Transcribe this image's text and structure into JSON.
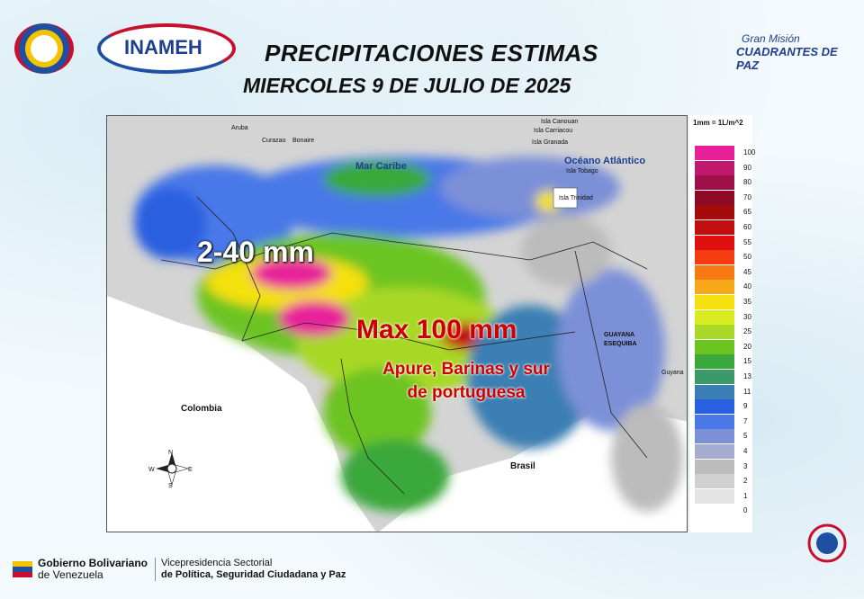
{
  "header": {
    "title": "PRECIPITACIONES  ESTIMAS",
    "subtitle": "MIERCOLES 9  DE JULIO DE 2025"
  },
  "logos": {
    "inameh": "INAMEH",
    "gran_mision_1": "Gran Misión",
    "gran_mision_2": "CUADRANTES DE PAZ"
  },
  "map": {
    "labels": {
      "aruba": "Aruba",
      "curazao": "Curazao",
      "bonaire": "Bonaire",
      "mar_caribe": "Mar Caribe",
      "oceano": "Océano Atlántico",
      "canouan": "Isla Canouan",
      "carriacou": "Isla Carriacou",
      "granada": "Isla Granada",
      "tobago": "Isla Tobago",
      "trinidad": "Isla Trinidad",
      "colombia": "Colombia",
      "brasil": "Brasil",
      "guyana": "Guyana",
      "guayana_esequiba_1": "GUAYANA",
      "guayana_esequiba_2": "ESEQUIBA"
    },
    "compass": {
      "n": "N",
      "s": "S",
      "e": "E",
      "w": "W"
    },
    "annotations": {
      "range": "2-40 mm",
      "max": "Max 100 mm",
      "states_1": "Apure, Barinas y sur",
      "states_2": "de portuguesa"
    }
  },
  "legend": {
    "unit": "1mm = 1L/m^2",
    "levels": [
      {
        "value": "100",
        "color": "#e8209a"
      },
      {
        "value": "90",
        "color": "#c2186e"
      },
      {
        "value": "80",
        "color": "#a01048"
      },
      {
        "value": "70",
        "color": "#8c0a26"
      },
      {
        "value": "65",
        "color": "#a40c0c"
      },
      {
        "value": "60",
        "color": "#c20e0e"
      },
      {
        "value": "55",
        "color": "#e01010"
      },
      {
        "value": "50",
        "color": "#f43c10"
      },
      {
        "value": "45",
        "color": "#f77a12"
      },
      {
        "value": "40",
        "color": "#f7a818"
      },
      {
        "value": "35",
        "color": "#f4e010"
      },
      {
        "value": "30",
        "color": "#d8ec20"
      },
      {
        "value": "25",
        "color": "#a8d828"
      },
      {
        "value": "20",
        "color": "#6cc420"
      },
      {
        "value": "15",
        "color": "#3aa83a"
      },
      {
        "value": "13",
        "color": "#3a9a68"
      },
      {
        "value": "11",
        "color": "#3a7fb4"
      },
      {
        "value": "9",
        "color": "#2a5fe0"
      },
      {
        "value": "7",
        "color": "#4a78e8"
      },
      {
        "value": "5",
        "color": "#7c90d8"
      },
      {
        "value": "4",
        "color": "#a4acd0"
      },
      {
        "value": "3",
        "color": "#bcbcbc"
      },
      {
        "value": "2",
        "color": "#d0d0d0"
      },
      {
        "value": "1",
        "color": "#e4e4e4"
      },
      {
        "value": "0",
        "color": "#ffffff"
      }
    ]
  },
  "footer": {
    "gov_1": "Gobierno Bolivariano",
    "gov_2": "de Venezuela",
    "vp_1": "Vicepresidencia Sectorial",
    "vp_2": "de Política, Seguridad Ciudadana y Paz"
  }
}
